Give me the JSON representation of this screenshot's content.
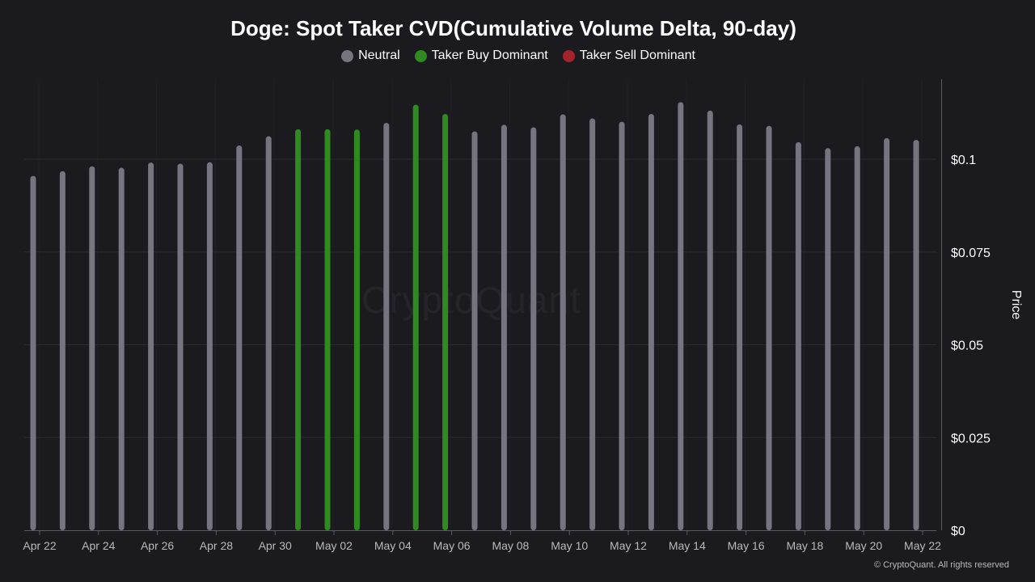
{
  "chart_data": {
    "type": "bar",
    "title": "Doge: Spot Taker CVD(Cumulative Volume Delta, 90-day)",
    "ylabel": "Price",
    "xlabel": "",
    "ylim": [
      0,
      0.12
    ],
    "y_ticks": [
      "$0",
      "$0.025",
      "$0.05",
      "$0.075",
      "$0.1"
    ],
    "y_tick_values": [
      0,
      0.025,
      0.05,
      0.075,
      0.1
    ],
    "x_tick_labels": [
      "Apr 22",
      "Apr 24",
      "Apr 26",
      "Apr 28",
      "Apr 30",
      "May 02",
      "May 04",
      "May 06",
      "May 08",
      "May 10",
      "May 12",
      "May 14",
      "May 16",
      "May 18",
      "May 20",
      "May 22"
    ],
    "legend": [
      {
        "name": "Neutral",
        "color": "#76747f"
      },
      {
        "name": "Taker Buy Dominant",
        "color": "#2f8a1f"
      },
      {
        "name": "Taker Sell Dominant",
        "color": "#a2242b"
      }
    ],
    "grid": true,
    "categories": [
      "Apr 22",
      "Apr 23",
      "Apr 24",
      "Apr 25",
      "Apr 26",
      "Apr 27",
      "Apr 28",
      "Apr 29",
      "Apr 30",
      "May 01",
      "May 02",
      "May 03",
      "May 04",
      "May 05",
      "May 06",
      "May 07",
      "May 08",
      "May 09",
      "May 10",
      "May 11",
      "May 12",
      "May 13",
      "May 14",
      "May 15",
      "May 16",
      "May 17",
      "May 18",
      "May 19",
      "May 20",
      "May 21",
      "May 22"
    ],
    "values": [
      0.0955,
      0.0968,
      0.0981,
      0.0977,
      0.0991,
      0.0988,
      0.0992,
      0.1037,
      0.1062,
      0.1081,
      0.1081,
      0.108,
      0.1098,
      0.1147,
      0.1122,
      0.1075,
      0.1093,
      0.1086,
      0.1121,
      0.111,
      0.1101,
      0.1122,
      0.1154,
      0.1131,
      0.1094,
      0.109,
      0.1046,
      0.103,
      0.1035,
      0.1057,
      0.1052
    ],
    "status": [
      "Neutral",
      "Neutral",
      "Neutral",
      "Neutral",
      "Neutral",
      "Neutral",
      "Neutral",
      "Neutral",
      "Neutral",
      "Taker Buy Dominant",
      "Taker Buy Dominant",
      "Taker Buy Dominant",
      "Neutral",
      "Taker Buy Dominant",
      "Taker Buy Dominant",
      "Neutral",
      "Neutral",
      "Neutral",
      "Neutral",
      "Neutral",
      "Neutral",
      "Neutral",
      "Neutral",
      "Neutral",
      "Neutral",
      "Neutral",
      "Neutral",
      "Neutral",
      "Neutral",
      "Neutral",
      "Neutral"
    ]
  },
  "watermark": "CryptoQuant",
  "copyright": "© CryptoQuant. All rights reserved",
  "colors": {
    "background": "#1b1b1f",
    "grid": "#2a2a30",
    "axis": "#5a5a62"
  }
}
